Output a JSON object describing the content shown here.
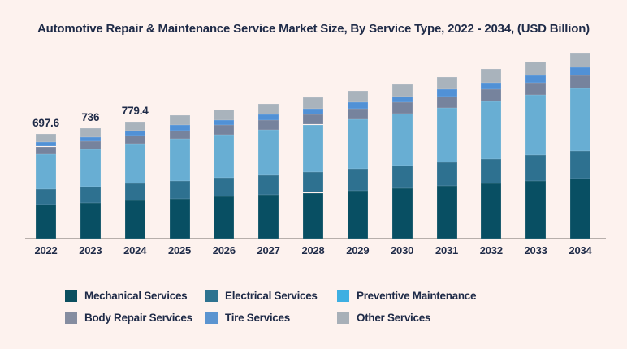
{
  "title": "Automotive Repair & Maintenance Service Market Size, By Service Type, 2022 - 2034, (USD Billion)",
  "colors": {
    "background": "#fdf2ee",
    "text": "#1f2b48",
    "axis_line": "#b7afab"
  },
  "chart_data": {
    "type": "bar",
    "stacked": true,
    "title": "Automotive Repair & Maintenance Service Market Size, By Service Type, 2022 - 2034, (USD Billion)",
    "unit": "USD Billion",
    "categories": [
      "2022",
      "2023",
      "2024",
      "2025",
      "2026",
      "2027",
      "2028",
      "2029",
      "2030",
      "2031",
      "2032",
      "2033",
      "2034"
    ],
    "series": [
      {
        "name": "Mechanical Services",
        "color": "#084f63",
        "legend_color": "#0b4f5f",
        "values": [
          226.7,
          239.2,
          253.3,
          266.5,
          278.9,
          291.9,
          305.5,
          319.8,
          334.8,
          350.4,
          366.6,
          383.8,
          401.7
        ]
      },
      {
        "name": "Electrical Services",
        "color": "#2e7190",
        "legend_color": "#2e7390",
        "values": [
          101.8,
          107.5,
          113.8,
          119.7,
          125.3,
          131.1,
          137.2,
          143.7,
          150.4,
          157.4,
          164.7,
          172.4,
          180.5
        ]
      },
      {
        "name": "Preventive Maintenance",
        "color": "#68aed3",
        "legend_color": "#3eafe2",
        "values": [
          235.4,
          248.4,
          263.0,
          276.8,
          289.6,
          303.1,
          317.3,
          332.1,
          347.6,
          363.8,
          380.7,
          398.6,
          417.2
        ]
      },
      {
        "name": "Body Repair Services",
        "color": "#76839d",
        "legend_color": "#858da0",
        "values": [
          49.9,
          52.6,
          55.7,
          58.6,
          61.3,
          64.2,
          67.2,
          70.4,
          73.6,
          77.1,
          80.7,
          84.4,
          88.4
        ]
      },
      {
        "name": "Tire Services",
        "color": "#5191d6",
        "legend_color": "#5b94d0",
        "values": [
          29.0,
          30.5,
          32.3,
          34.0,
          35.6,
          37.3,
          39.0,
          40.8,
          42.7,
          44.7,
          46.8,
          49.0,
          51.3
        ]
      },
      {
        "name": "Other Services",
        "color": "#a9b3bc",
        "legend_color": "#a8b0b8",
        "values": [
          54.8,
          57.8,
          61.3,
          64.4,
          67.3,
          70.4,
          73.8,
          77.2,
          80.9,
          84.6,
          88.5,
          92.8,
          96.9
        ]
      }
    ],
    "totals": [
      697.6,
      736.0,
      779.4,
      820.0,
      858.0,
      898.0,
      940.0,
      984.0,
      1030.0,
      1078.0,
      1128.0,
      1181.0,
      1236.0
    ],
    "value_labels": [
      "697.6",
      "736",
      "779.4",
      null,
      null,
      null,
      null,
      null,
      null,
      null,
      null,
      null,
      null
    ],
    "legend_position": "bottom",
    "legend_rows": 2,
    "grid": false,
    "y_axis_visible": false,
    "ylim": [
      0,
      1300
    ]
  }
}
